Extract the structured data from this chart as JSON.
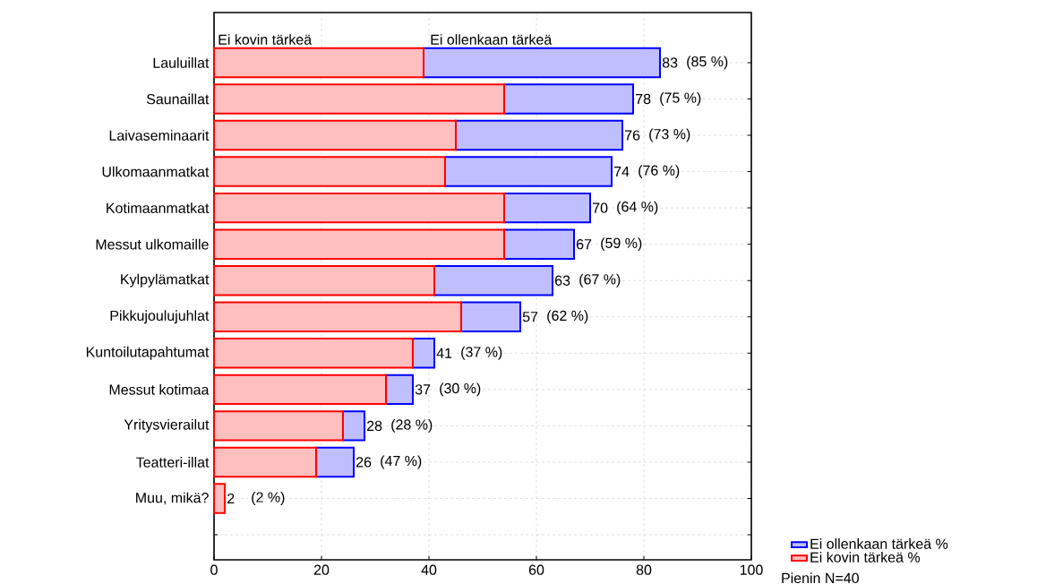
{
  "chart_data": {
    "type": "bar",
    "orientation": "horizontal",
    "stacked": true,
    "categories": [
      "Lauluillat",
      "Saunaillat",
      "Laivaseminaarit",
      "Ulkomaanmatkat",
      "Kotimaanmatkat",
      "Messut ulkomaille",
      "Kylpylämatkat",
      "Pikkujoulujuhlat",
      "Kuntoilutapahtumat",
      "Messut kotimaa",
      "Yritysvierailut",
      "Teatteri-illat",
      "Muu, mikä?",
      null
    ],
    "series": [
      {
        "name": "Ei kovin tärkeä %",
        "color": "#ff0000",
        "values": [
          39,
          54,
          45,
          43,
          54,
          54,
          41,
          46,
          37,
          32,
          24,
          19,
          2,
          null
        ]
      },
      {
        "name": "Ei ollenkaan tärkeä %",
        "color": "#0000ff",
        "values": [
          44,
          24,
          31,
          31,
          16,
          13,
          22,
          11,
          4,
          5,
          4,
          7,
          null,
          null
        ]
      }
    ],
    "totals": [
      "83",
      "78",
      "76",
      "74",
      "70",
      "67",
      "63",
      "57",
      "41",
      "37",
      "28",
      "26",
      "2",
      null
    ],
    "xlim": [
      0,
      100
    ],
    "xticks": [
      0,
      20,
      40,
      60,
      80,
      100
    ],
    "grid": true,
    "legend": "bottom right",
    "annotations": [
      "Ei kovin tärkeä",
      "Ei ollenkaan tärkeä",
      "Pienin N=40",
      {
        "text": "(85 %)",
        "x": 83,
        "y": "Lauluillat"
      },
      {
        "text": "(75 %)",
        "x": 78,
        "y": "Saunaillat"
      },
      {
        "text": "(73 %)",
        "x": 76,
        "y": "Laivaseminaarit"
      },
      {
        "text": "(76 %)",
        "x": 74,
        "y": "Ulkomaanmatkat"
      },
      {
        "text": "(64 %)",
        "x": 70,
        "y": "Kotimaanmatkat"
      },
      {
        "text": "(59 %)",
        "x": 67,
        "y": "Messut ulkomaille"
      },
      {
        "text": "(67 %)",
        "x": 63,
        "y": "Kylpylämatkat"
      },
      {
        "text": "(62 %)",
        "x": 57,
        "y": "Pikkujoulujuhlat"
      },
      {
        "text": "(37 %)",
        "x": 41,
        "y": "Kuntoilutapahtumat"
      },
      {
        "text": "(30 %)",
        "x": 37,
        "y": "Messut kotimaa"
      },
      {
        "text": "(28 %)",
        "x": 28,
        "y": "Yritysvierailut"
      },
      {
        "text": "(47 %)",
        "x": 26,
        "y": "Teatteri-illat"
      },
      {
        "text": "(2 %)",
        "x": 2,
        "y": "Muu, mikä?"
      }
    ]
  }
}
